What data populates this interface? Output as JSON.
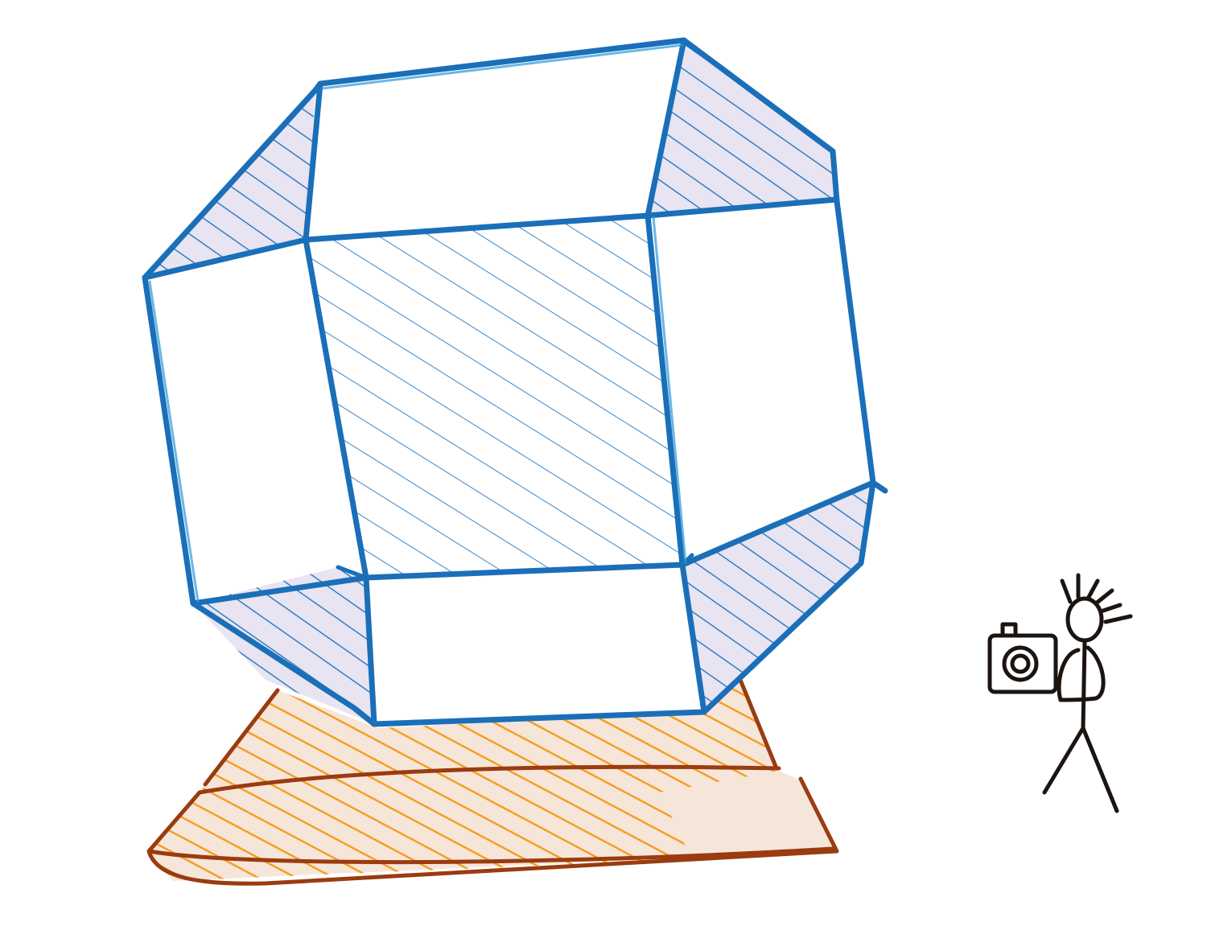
{
  "drawing": {
    "subject": "sketch",
    "colors": {
      "blue_ink": "#1a6fb8",
      "light_blue_ink": "#2a9ad8",
      "hatch_blue": "#2f7fc4",
      "shaded_face": "#e8e4f1",
      "orange_fill": "#f59a1a",
      "orange_face": "#f6e6da",
      "brown_ink": "#9a3b10",
      "black_ink": "#1b1410",
      "paper": "#ffffff"
    },
    "icons": [
      "camera-icon",
      "stick-figure-icon"
    ]
  }
}
